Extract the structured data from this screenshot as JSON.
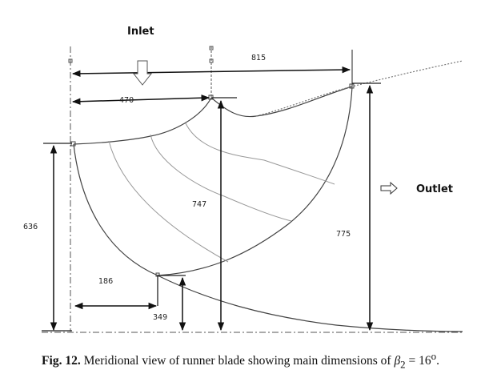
{
  "figure": {
    "labels": {
      "inlet": "Inlet",
      "outlet": "Outlet"
    },
    "dimensions": {
      "width_outer": "815",
      "width_inlet": "470",
      "height_left": "636",
      "height_hub": "747",
      "height_outlet": "775",
      "radius_bottom": "186",
      "height_bottom": "349"
    }
  },
  "caption": {
    "label": "Fig. 12.",
    "text": "Meridional view of runner blade showing main dimensions of",
    "symbol": "β",
    "subscript": "2",
    "equation": " = 16",
    "superscript": "o",
    "end": "."
  }
}
